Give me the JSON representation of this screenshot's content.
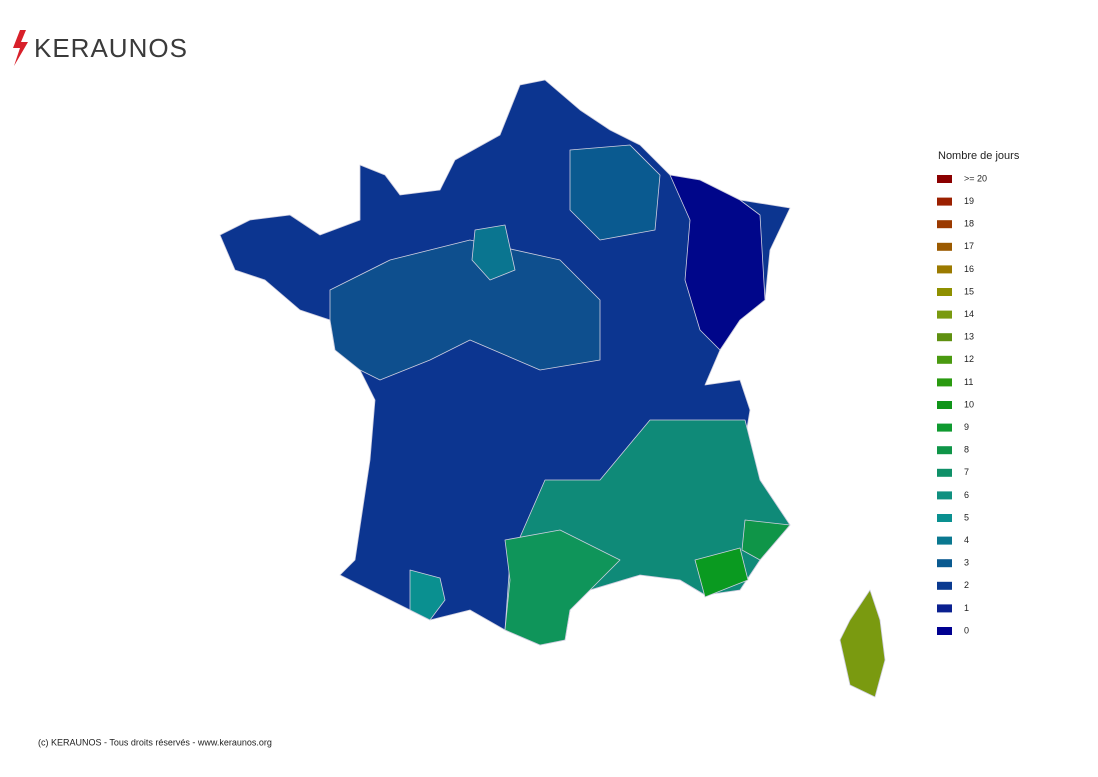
{
  "header": {
    "logo": "KERAUNOS"
  },
  "legend": {
    "title": "Nombre de jours",
    "items": [
      {
        "label": ">= 20",
        "color": "#8b0000"
      },
      {
        "label": "19",
        "color": "#9b2000"
      },
      {
        "label": "18",
        "color": "#9b3a00"
      },
      {
        "label": "17",
        "color": "#9b5a00"
      },
      {
        "label": "16",
        "color": "#9b7a00"
      },
      {
        "label": "15",
        "color": "#8f9000"
      },
      {
        "label": "14",
        "color": "#7a9a10"
      },
      {
        "label": "13",
        "color": "#5f9010"
      },
      {
        "label": "12",
        "color": "#4a9a10"
      },
      {
        "label": "11",
        "color": "#2a9a10"
      },
      {
        "label": "10",
        "color": "#10951a"
      },
      {
        "label": "9",
        "color": "#0f9a30"
      },
      {
        "label": "8",
        "color": "#0f9548"
      },
      {
        "label": "7",
        "color": "#0f9068"
      },
      {
        "label": "6",
        "color": "#109080"
      },
      {
        "label": "5",
        "color": "#0a9090"
      },
      {
        "label": "4",
        "color": "#0a7890"
      },
      {
        "label": "3",
        "color": "#0a5a90"
      },
      {
        "label": "2",
        "color": "#0a3a90"
      },
      {
        "label": "1",
        "color": "#0a2090"
      },
      {
        "label": "0",
        "color": "#000090"
      }
    ]
  },
  "footer": {
    "text": "(c) KERAUNOS - Tous droits réservés - www.keraunos.org"
  }
}
